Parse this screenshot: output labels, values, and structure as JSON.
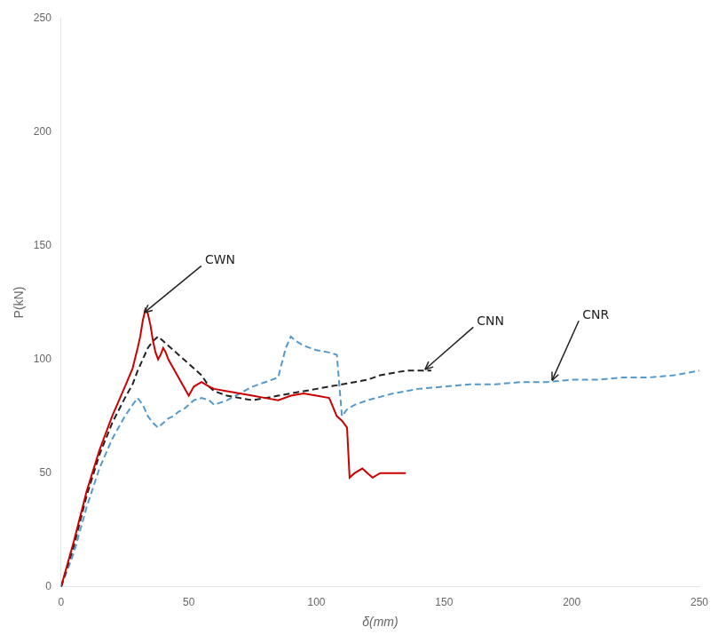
{
  "chart_data": {
    "type": "line",
    "xlabel": "δ(mm)",
    "ylabel": "P(kN)",
    "xlim": [
      0,
      250
    ],
    "ylim": [
      0,
      250
    ],
    "xticks": [
      0,
      50,
      100,
      150,
      200,
      250
    ],
    "yticks": [
      0,
      50,
      100,
      150,
      200,
      250
    ],
    "grid": false,
    "series": [
      {
        "name": "CWN",
        "color": "#cc0000",
        "line_style": "solid",
        "x": [
          0,
          5,
          10,
          15,
          20,
          25,
          28,
          30,
          31,
          32,
          33,
          34,
          35,
          36,
          37,
          38,
          39,
          40,
          41,
          42,
          43,
          44,
          45,
          46,
          47,
          48,
          49,
          50,
          52,
          55,
          58,
          60,
          65,
          70,
          75,
          80,
          85,
          90,
          95,
          100,
          105,
          108,
          110,
          112,
          113,
          115,
          118,
          120,
          122,
          125,
          130,
          135
        ],
        "values": [
          0,
          20,
          42,
          60,
          75,
          88,
          96,
          105,
          110,
          117,
          122,
          120,
          115,
          108,
          103,
          100,
          102,
          105,
          103,
          100,
          98,
          96,
          94,
          92,
          90,
          88,
          86,
          84,
          88,
          90,
          88,
          87,
          86,
          85,
          84,
          83,
          82,
          84,
          85,
          84,
          83,
          75,
          73,
          70,
          48,
          50,
          52,
          50,
          48,
          50,
          50,
          50
        ]
      },
      {
        "name": "CNN",
        "color": "#222222",
        "line_style": "dashed",
        "x": [
          0,
          5,
          10,
          15,
          20,
          25,
          28,
          30,
          32,
          34,
          36,
          38,
          40,
          42,
          44,
          46,
          48,
          50,
          52,
          55,
          58,
          60,
          65,
          70,
          75,
          80,
          85,
          90,
          95,
          100,
          105,
          110,
          115,
          120,
          125,
          130,
          135,
          140,
          145
        ],
        "values": [
          0,
          18,
          40,
          58,
          72,
          83,
          89,
          95,
          100,
          105,
          108,
          110,
          108,
          106,
          104,
          102,
          100,
          98,
          96,
          93,
          88,
          86,
          84,
          83,
          82,
          83,
          84,
          85,
          86,
          87,
          88,
          89,
          90,
          91,
          93,
          94,
          95,
          95,
          95
        ]
      },
      {
        "name": "CNR",
        "color": "#5599cc",
        "line_style": "dashed",
        "x": [
          0,
          5,
          10,
          15,
          20,
          25,
          28,
          30,
          32,
          34,
          36,
          38,
          40,
          42,
          44,
          46,
          48,
          50,
          52,
          55,
          58,
          60,
          65,
          70,
          75,
          80,
          85,
          88,
          90,
          92,
          95,
          100,
          105,
          108,
          110,
          112,
          115,
          120,
          130,
          140,
          150,
          160,
          170,
          180,
          190,
          200,
          210,
          220,
          230,
          240,
          250
        ],
        "values": [
          0,
          15,
          35,
          52,
          65,
          75,
          80,
          83,
          80,
          75,
          72,
          70,
          72,
          74,
          75,
          77,
          78,
          80,
          82,
          83,
          82,
          80,
          82,
          85,
          88,
          90,
          92,
          105,
          110,
          108,
          106,
          104,
          103,
          102,
          75,
          78,
          80,
          82,
          85,
          87,
          88,
          89,
          89,
          90,
          90,
          91,
          91,
          92,
          92,
          93,
          95
        ]
      }
    ],
    "annotations": [
      {
        "text": "CWN",
        "xy": [
          32,
          120
        ]
      },
      {
        "text": "CNN",
        "xy": [
          142,
          95
        ]
      },
      {
        "text": "CNR",
        "xy": [
          192,
          90
        ]
      }
    ]
  }
}
